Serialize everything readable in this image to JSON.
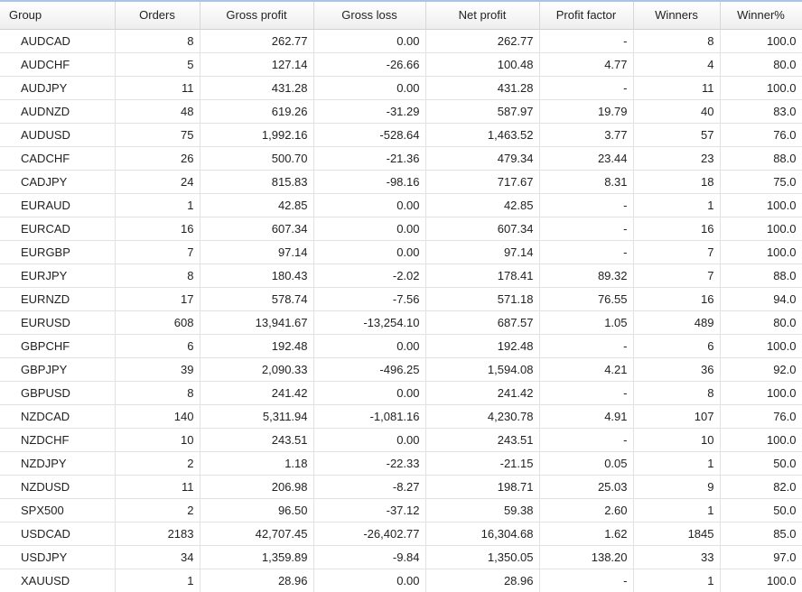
{
  "table": {
    "columns": [
      "Group",
      "Orders",
      "Gross profit",
      "Gross loss",
      "Net profit",
      "Profit factor",
      "Winners",
      "Winner%"
    ],
    "rows": [
      [
        "AUDCAD",
        "8",
        "262.77",
        "0.00",
        "262.77",
        "-",
        "8",
        "100.0"
      ],
      [
        "AUDCHF",
        "5",
        "127.14",
        "-26.66",
        "100.48",
        "4.77",
        "4",
        "80.0"
      ],
      [
        "AUDJPY",
        "11",
        "431.28",
        "0.00",
        "431.28",
        "-",
        "11",
        "100.0"
      ],
      [
        "AUDNZD",
        "48",
        "619.26",
        "-31.29",
        "587.97",
        "19.79",
        "40",
        "83.0"
      ],
      [
        "AUDUSD",
        "75",
        "1,992.16",
        "-528.64",
        "1,463.52",
        "3.77",
        "57",
        "76.0"
      ],
      [
        "CADCHF",
        "26",
        "500.70",
        "-21.36",
        "479.34",
        "23.44",
        "23",
        "88.0"
      ],
      [
        "CADJPY",
        "24",
        "815.83",
        "-98.16",
        "717.67",
        "8.31",
        "18",
        "75.0"
      ],
      [
        "EURAUD",
        "1",
        "42.85",
        "0.00",
        "42.85",
        "-",
        "1",
        "100.0"
      ],
      [
        "EURCAD",
        "16",
        "607.34",
        "0.00",
        "607.34",
        "-",
        "16",
        "100.0"
      ],
      [
        "EURGBP",
        "7",
        "97.14",
        "0.00",
        "97.14",
        "-",
        "7",
        "100.0"
      ],
      [
        "EURJPY",
        "8",
        "180.43",
        "-2.02",
        "178.41",
        "89.32",
        "7",
        "88.0"
      ],
      [
        "EURNZD",
        "17",
        "578.74",
        "-7.56",
        "571.18",
        "76.55",
        "16",
        "94.0"
      ],
      [
        "EURUSD",
        "608",
        "13,941.67",
        "-13,254.10",
        "687.57",
        "1.05",
        "489",
        "80.0"
      ],
      [
        "GBPCHF",
        "6",
        "192.48",
        "0.00",
        "192.48",
        "-",
        "6",
        "100.0"
      ],
      [
        "GBPJPY",
        "39",
        "2,090.33",
        "-496.25",
        "1,594.08",
        "4.21",
        "36",
        "92.0"
      ],
      [
        "GBPUSD",
        "8",
        "241.42",
        "0.00",
        "241.42",
        "-",
        "8",
        "100.0"
      ],
      [
        "NZDCAD",
        "140",
        "5,311.94",
        "-1,081.16",
        "4,230.78",
        "4.91",
        "107",
        "76.0"
      ],
      [
        "NZDCHF",
        "10",
        "243.51",
        "0.00",
        "243.51",
        "-",
        "10",
        "100.0"
      ],
      [
        "NZDJPY",
        "2",
        "1.18",
        "-22.33",
        "-21.15",
        "0.05",
        "1",
        "50.0"
      ],
      [
        "NZDUSD",
        "11",
        "206.98",
        "-8.27",
        "198.71",
        "25.03",
        "9",
        "82.0"
      ],
      [
        "SPX500",
        "2",
        "96.50",
        "-37.12",
        "59.38",
        "2.60",
        "1",
        "50.0"
      ],
      [
        "USDCAD",
        "2183",
        "42,707.45",
        "-26,402.77",
        "16,304.68",
        "1.62",
        "1845",
        "85.0"
      ],
      [
        "USDJPY",
        "34",
        "1,359.89",
        "-9.84",
        "1,350.05",
        "138.20",
        "33",
        "97.0"
      ],
      [
        "XAUUSD",
        "1",
        "28.96",
        "0.00",
        "28.96",
        "-",
        "1",
        "100.0"
      ]
    ]
  }
}
